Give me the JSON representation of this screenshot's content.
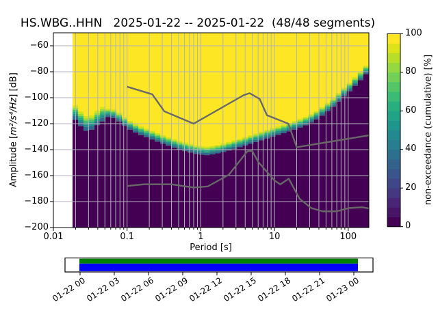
{
  "title": "HS.WBG..HHN   2025-01-22 -- 2025-01-22  (48/48 segments)",
  "axes": {
    "xlabel": "Period [s]",
    "ylabel_prefix": "Amplitude [",
    "ylabel_math": "m²/s⁴/Hz",
    "ylabel_suffix": "] [dB]",
    "x_ticks": [
      {
        "label": "0.01",
        "value": 0.01
      },
      {
        "label": "0.1",
        "value": 0.1
      },
      {
        "label": "1",
        "value": 1
      },
      {
        "label": "10",
        "value": 10
      },
      {
        "label": "100",
        "value": 100
      }
    ],
    "y_ticks": [
      {
        "label": "−60",
        "value": -60
      },
      {
        "label": "−80",
        "value": -80
      },
      {
        "label": "−100",
        "value": -100
      },
      {
        "label": "−120",
        "value": -120
      },
      {
        "label": "−140",
        "value": -140
      },
      {
        "label": "−160",
        "value": -160
      },
      {
        "label": "−180",
        "value": -180
      },
      {
        "label": "−200",
        "value": -200
      }
    ]
  },
  "colorbar": {
    "label": "non-exceedance (cumulative) [%]",
    "ticks": [
      {
        "label": "0",
        "value": 0
      },
      {
        "label": "20",
        "value": 20
      },
      {
        "label": "40",
        "value": 40
      },
      {
        "label": "60",
        "value": 60
      },
      {
        "label": "80",
        "value": 80
      },
      {
        "label": "100",
        "value": 100
      }
    ],
    "colors": [
      "#440154",
      "#481467",
      "#482576",
      "#453781",
      "#3f4788",
      "#39558c",
      "#33638d",
      "#2d708e",
      "#287d8e",
      "#23898e",
      "#1f968b",
      "#20a386",
      "#29af7f",
      "#3bbb75",
      "#55c667",
      "#73d056",
      "#95d840",
      "#b8de29",
      "#dde318",
      "#fde725"
    ]
  },
  "timeline": {
    "tick_labels": [
      "01-22 00",
      "01-22 03",
      "01-22 06",
      "01-22 09",
      "01-22 12",
      "01-22 15",
      "01-22 18",
      "01-22 21",
      "01-23 00"
    ],
    "coverage_top_color": "#008000",
    "coverage_bottom_color": "#0000ff"
  },
  "chart_data": {
    "type": "heatmap",
    "title": "HS.WBG..HHN   2025-01-22 -- 2025-01-22  (48/48 segments)",
    "station": "HS.WBG..HHN",
    "date_range": "2025-01-22 -- 2025-01-22",
    "segments_used": 48,
    "segments_total": 48,
    "xlabel": "Period [s]",
    "ylabel": "Amplitude [m²/s⁴/Hz] [dB]",
    "colorbar_label": "non-exceedance (cumulative) [%]",
    "x_scale": "log",
    "x_range_s": [
      0.01,
      190
    ],
    "y_range_db": [
      -200,
      -50
    ],
    "value_range_pct": [
      0,
      100
    ],
    "data_period_range": [
      0.0182,
      190
    ],
    "cumulative_boundary_db": [
      [
        0.018,
        -109
      ],
      [
        0.021,
        -113
      ],
      [
        0.025,
        -118
      ],
      [
        0.03,
        -121
      ],
      [
        0.036,
        -117.5
      ],
      [
        0.043,
        -113.5
      ],
      [
        0.05,
        -112
      ],
      [
        0.06,
        -111.5
      ],
      [
        0.07,
        -113
      ],
      [
        0.085,
        -116.5
      ],
      [
        0.1,
        -120
      ],
      [
        0.14,
        -124.5
      ],
      [
        0.2,
        -128
      ],
      [
        0.3,
        -132
      ],
      [
        0.5,
        -136.5
      ],
      [
        0.7,
        -138.7
      ],
      [
        0.9,
        -140.3
      ],
      [
        1.2,
        -141
      ],
      [
        1.6,
        -140
      ],
      [
        2.2,
        -138
      ],
      [
        3.2,
        -135.3
      ],
      [
        4.6,
        -132.5
      ],
      [
        6.5,
        -129.8
      ],
      [
        9.5,
        -126.6
      ],
      [
        14,
        -123.7
      ],
      [
        19,
        -121.2
      ],
      [
        26,
        -118.2
      ],
      [
        35,
        -114.5
      ],
      [
        47,
        -109.5
      ],
      [
        63,
        -103.5
      ],
      [
        83,
        -97
      ],
      [
        108,
        -91
      ],
      [
        140,
        -84.5
      ],
      [
        175,
        -78.5
      ],
      [
        191,
        -76.5
      ]
    ],
    "transition_offsets_db": [
      3.3,
      2.2,
      1.3,
      0.45,
      -0.45,
      -1.6,
      -3.3
    ],
    "transition_colors": [
      "#d2e21b",
      "#95d840",
      "#4ac16d",
      "#26ad81",
      "#21918c",
      "#31688e"
    ],
    "colors": {
      "above": "#fde725",
      "below": "#440154",
      "grid": "#b2b2bc"
    },
    "noise_models": {
      "color": "#686868",
      "high": [
        [
          0.1,
          -91.5
        ],
        [
          0.22,
          -97.4
        ],
        [
          0.32,
          -110.5
        ],
        [
          0.8,
          -120.0
        ],
        [
          3.8,
          -98.1
        ],
        [
          4.6,
          -96.5
        ],
        [
          6.3,
          -101.0
        ],
        [
          7.9,
          -113.5
        ],
        [
          15.4,
          -120.0
        ],
        [
          20.0,
          -138.1
        ],
        [
          190,
          -129.0
        ]
      ],
      "low": [
        [
          0.1,
          -168.0
        ],
        [
          0.17,
          -166.7
        ],
        [
          0.4,
          -166.7
        ],
        [
          0.8,
          -169.2
        ],
        [
          1.24,
          -168.35
        ],
        [
          2.4,
          -159.34
        ],
        [
          4.3,
          -141.1
        ],
        [
          5.0,
          -141.1
        ],
        [
          6.0,
          -149.36
        ],
        [
          10.0,
          -163.79
        ],
        [
          12.0,
          -166.7
        ],
        [
          15.6,
          -162.37
        ],
        [
          21.9,
          -177.84
        ],
        [
          31.6,
          -185.0
        ],
        [
          45.0,
          -187.5
        ],
        [
          70.0,
          -187.5
        ],
        [
          101.0,
          -185.0
        ],
        [
          154.0,
          -184.4
        ],
        [
          190,
          -185.2
        ]
      ]
    }
  }
}
